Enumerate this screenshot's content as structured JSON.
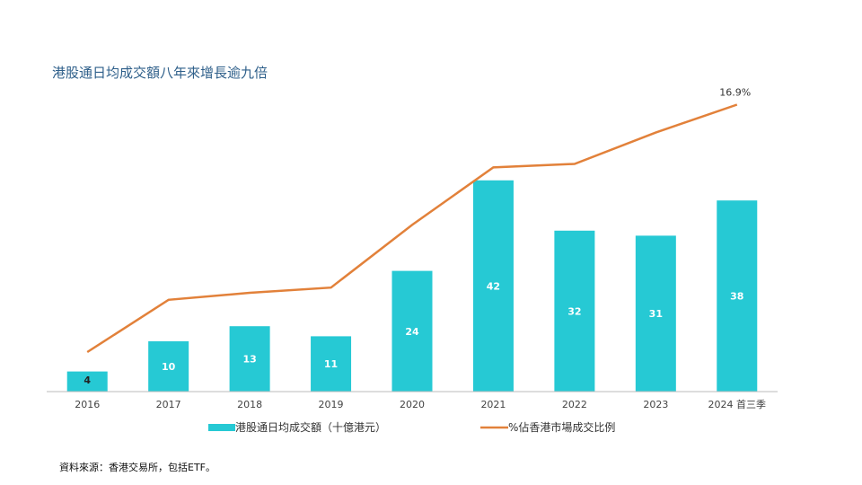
{
  "title": "港股通日均成交額八年來增長逾九倍",
  "source": "資料來源：香港交易所，包括ETF。",
  "colors": {
    "bar": "#26c9d4",
    "line": "#e2813a",
    "axis": "#bbbbbb",
    "label": "#ffffff",
    "tick": "#444444"
  },
  "chart_data": {
    "type": "bar",
    "categories": [
      "2016",
      "2017",
      "2018",
      "2019",
      "2020",
      "2021",
      "2022",
      "2023",
      "2024 首三季"
    ],
    "series": [
      {
        "name": "港股通日均成交額（十億港元）",
        "type": "bar",
        "values": [
          4,
          10,
          13,
          11,
          24,
          42,
          32,
          31,
          38
        ]
      },
      {
        "name": "%佔香港市場成交比例",
        "type": "line",
        "values": [
          2.7,
          5.7,
          6.1,
          6.4,
          10.0,
          13.3,
          13.5,
          15.3,
          16.9
        ]
      }
    ],
    "annotations": [
      {
        "series": 1,
        "index": 8,
        "text": "16.9%"
      }
    ],
    "grid": false,
    "legend": "bottom"
  }
}
